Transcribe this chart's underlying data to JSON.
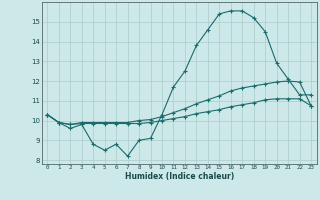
{
  "title": "",
  "xlabel": "Humidex (Indice chaleur)",
  "ylabel": "",
  "bg_color": "#cce8e8",
  "grid_color": "#aacccc",
  "line_color": "#1a6b6b",
  "x_hours": [
    0,
    1,
    2,
    3,
    4,
    5,
    6,
    7,
    8,
    9,
    10,
    11,
    12,
    13,
    14,
    15,
    16,
    17,
    18,
    19,
    20,
    21,
    22,
    23
  ],
  "line1_y": [
    10.3,
    9.9,
    9.6,
    9.8,
    8.8,
    8.5,
    8.8,
    8.2,
    9.0,
    9.1,
    10.3,
    11.7,
    12.5,
    13.8,
    14.6,
    15.4,
    15.55,
    15.55,
    15.2,
    14.5,
    12.9,
    12.1,
    11.3,
    11.3
  ],
  "line2_y": [
    10.3,
    9.9,
    9.8,
    9.85,
    9.85,
    9.85,
    9.85,
    9.85,
    9.85,
    9.9,
    10.0,
    10.1,
    10.2,
    10.35,
    10.45,
    10.55,
    10.7,
    10.8,
    10.9,
    11.05,
    11.1,
    11.1,
    11.1,
    10.75
  ],
  "line3_y": [
    10.3,
    9.9,
    9.8,
    9.9,
    9.9,
    9.9,
    9.9,
    9.9,
    10.0,
    10.05,
    10.2,
    10.4,
    10.6,
    10.85,
    11.05,
    11.25,
    11.5,
    11.65,
    11.75,
    11.85,
    11.95,
    12.0,
    11.95,
    10.75
  ],
  "xlim": [
    -0.5,
    23.5
  ],
  "ylim": [
    7.8,
    16.0
  ],
  "yticks": [
    8,
    9,
    10,
    11,
    12,
    13,
    14,
    15
  ],
  "xticks": [
    0,
    1,
    2,
    3,
    4,
    5,
    6,
    7,
    8,
    9,
    10,
    11,
    12,
    13,
    14,
    15,
    16,
    17,
    18,
    19,
    20,
    21,
    22,
    23
  ]
}
